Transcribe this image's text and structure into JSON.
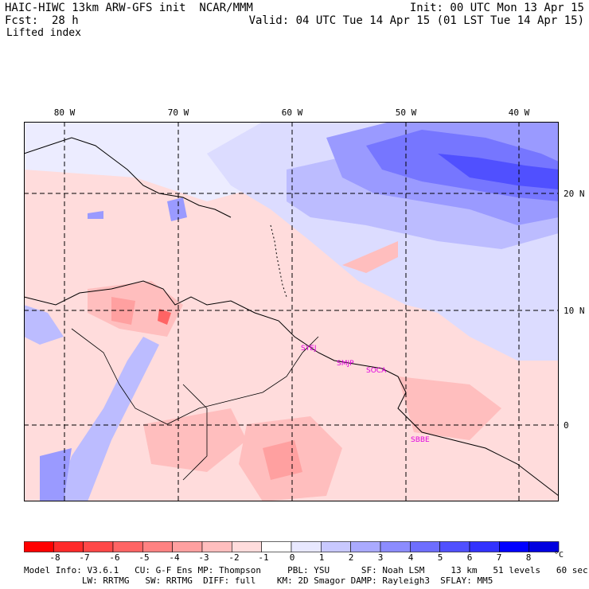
{
  "header": {
    "left1": "HAIC-HIWC 13km ARW-GFS init  NCAR/MMM",
    "left2": "Fcst:  28 h",
    "left3": "Lifted index",
    "right1": "Init: 00 UTC Mon 13 Apr 15",
    "right2": "Valid: 04 UTC Tue 14 Apr 15 (01 LST Tue 14 Apr 15)"
  },
  "axes": {
    "lon_labels": [
      "80 W",
      "70 W",
      "60 W",
      "50 W",
      "40 W"
    ],
    "lat_labels": [
      "20 N",
      "10 N",
      "0"
    ]
  },
  "stations": [
    "SYEJ",
    "SMJP",
    "SOCA",
    "SBBE"
  ],
  "colorbar": {
    "labels": [
      "-8",
      "-7",
      "-6",
      "-5",
      "-4",
      "-3",
      "-2",
      "-1",
      "0",
      "1",
      "2",
      "3",
      "4",
      "5",
      "6",
      "7",
      "8"
    ],
    "unit": "°C",
    "colors": [
      "#ff0000",
      "#ff2a2a",
      "#ff4848",
      "#ff6464",
      "#ff8282",
      "#ffa0a0",
      "#ffbebe",
      "#ffdcdc",
      "#ffffff",
      "#e8e8ff",
      "#c8c8ff",
      "#aaaaff",
      "#8c8cff",
      "#6e6eff",
      "#5050ff",
      "#3232ff",
      "#0000ff",
      "#0000e0"
    ]
  },
  "footer": {
    "line1": "Model Info: V3.6.1   CU: G-F Ens MP: Thompson     PBL: YSU      SF: Noah LSM     13 km   51 levels   60 sec",
    "line2": "           LW: RRTMG   SW: RRTMG  DIFF: full    KM: 2D Smagor DAMP: Rayleigh3  SFLAY: MM5"
  }
}
